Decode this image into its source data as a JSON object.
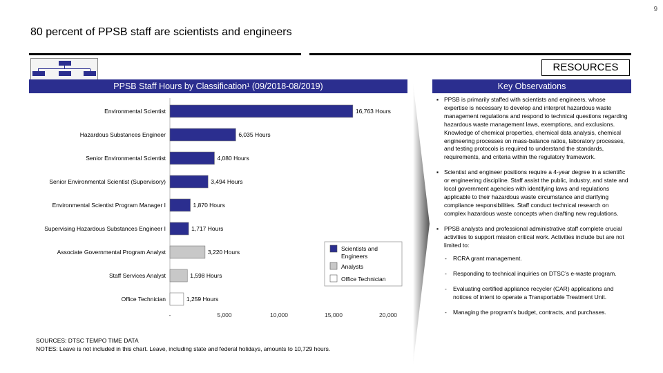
{
  "page_number": "9",
  "slide_title": "80 percent of PPSB staff are scientists and engineers",
  "resources_label": "RESOURCES",
  "chart_panel_title": "PPSB Staff Hours by Classification¹ (09/2018-08/2019)",
  "observations_title": "Key Observations",
  "colors": {
    "scientists_engineers": "#2b2e8f",
    "analysts": "#c8c8c8",
    "office_technician": "#ffffff",
    "header_bar": "#2b2e8f"
  },
  "chart_data": {
    "type": "bar",
    "orientation": "horizontal",
    "categories": [
      "Environmental Scientist",
      "Hazardous Substances Engineer",
      "Senior Environmental Scientist",
      "Senior Environmental Scientist (Supervisory)",
      "Environmental Scientist Program Manager I",
      "Supervising Hazardous Substances Engineer I",
      "Associate Governmental Program Analyst",
      "Staff Services Analyst",
      "Office Technician"
    ],
    "values": [
      16763,
      6035,
      4080,
      3494,
      1870,
      1717,
      3220,
      1598,
      1259
    ],
    "value_labels": [
      "16,763 Hours",
      "6,035 Hours",
      "4,080 Hours",
      "3,494 Hours",
      "1,870 Hours",
      "1,717 Hours",
      "3,220 Hours",
      "1,598 Hours",
      "1,259 Hours"
    ],
    "groups": [
      "Scientists and Engineers",
      "Scientists and Engineers",
      "Scientists and Engineers",
      "Scientists and Engineers",
      "Scientists and Engineers",
      "Scientists and Engineers",
      "Analysts",
      "Analysts",
      "Office Technician"
    ],
    "xlim": [
      0,
      20000
    ],
    "x_ticks": [
      "-",
      "5,000",
      "10,000",
      "15,000",
      "20,000"
    ],
    "x_tick_values": [
      0,
      5000,
      10000,
      15000,
      20000
    ],
    "legend": [
      "Scientists and Engineers",
      "Analysts",
      "Office Technician"
    ],
    "legend_position": "bottom-right",
    "grid": false
  },
  "footnotes": {
    "sources": "SOURCES: DTSC TEMPO TIME DATA",
    "notes": "NOTES: Leave is not included in this chart. Leave, including state and federal holidays, amounts to 10,729 hours."
  },
  "observations": [
    "PPSB is primarily staffed with scientists and engineers, whose expertise is necessary to develop and interpret hazardous waste management regulations and respond to technical questions regarding hazardous waste management laws, exemptions, and exclusions. Knowledge of chemical properties, chemical data analysis, chemical engineering processes on mass-balance ratios, laboratory processes, and testing protocols is required to understand the standards, requirements, and criteria within the regulatory framework.",
    "Scientist and engineer positions require a 4-year degree in a scientific or engineering discipline. Staff assist the public, industry, and state and local government agencies with identifying laws and regulations applicable to their hazardous waste circumstance and clarifying compliance responsibilities. Staff conduct technical research on complex hazardous waste concepts when drafting new regulations.",
    "PPSB analysts and professional administrative staff complete crucial activities to support mission critical work. Activities include but are not limited to:"
  ],
  "activities": [
    "RCRA grant management.",
    "Responding to technical inquiries on DTSC’s e-waste program.",
    "Evaluating certified appliance recycler (CAR) applications and notices of intent to operate a Transportable Treatment Unit.",
    "Managing the program’s budget, contracts, and purchases."
  ]
}
